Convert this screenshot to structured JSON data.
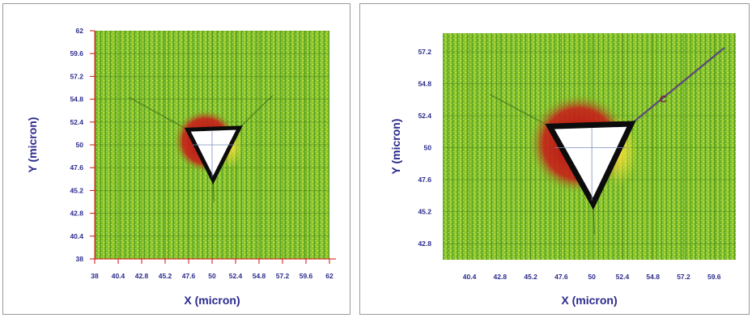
{
  "chart_data": [
    {
      "type": "heatmap",
      "xlabel": "X (micron)",
      "ylabel": "Y (micron)",
      "x_ticks": [
        "38",
        "40.4",
        "42.8",
        "45.2",
        "47.6",
        "50",
        "52.4",
        "54.8",
        "57.2",
        "59.6",
        "62"
      ],
      "y_ticks": [
        "62",
        "59.6",
        "57.2",
        "54.8",
        "52.4",
        "50",
        "47.6",
        "45.2",
        "42.8",
        "40.4",
        "38"
      ],
      "xlim": [
        38,
        62
      ],
      "ylim": [
        38,
        62
      ],
      "indent": {
        "vertices": [
          [
            47.5,
            51.6
          ],
          [
            52.8,
            51.8
          ],
          [
            50.1,
            46.3
          ]
        ],
        "center": [
          50,
          50
        ]
      },
      "cracks": [
        {
          "from": [
            47.5,
            51.6
          ],
          "to": [
            41.5,
            55.0
          ]
        },
        {
          "from": [
            52.8,
            51.8
          ],
          "to": [
            56.2,
            55.2
          ]
        },
        {
          "from": [
            50.1,
            46.3
          ],
          "to": [
            50.2,
            44.0
          ]
        }
      ],
      "annotations": []
    },
    {
      "type": "heatmap",
      "xlabel": "X (micron)",
      "ylabel": "Y (micron)",
      "x_ticks": [
        "40.4",
        "42.8",
        "45.2",
        "47.6",
        "50",
        "52.4",
        "54.8",
        "57.2",
        "59.6"
      ],
      "y_ticks": [
        "57.2",
        "54.8",
        "52.4",
        "50",
        "47.6",
        "45.2",
        "42.8"
      ],
      "xlim": [
        38.3,
        61.3
      ],
      "ylim": [
        41.6,
        58.6
      ],
      "indent": {
        "vertices": [
          [
            46.7,
            51.6
          ],
          [
            53.1,
            51.8
          ],
          [
            50.1,
            45.8
          ]
        ],
        "center": [
          50,
          50
        ]
      },
      "cracks": [
        {
          "from": [
            53.1,
            51.8
          ],
          "to": [
            60.4,
            57.5
          ]
        },
        {
          "from": [
            46.7,
            51.6
          ],
          "to": [
            42.0,
            54.0
          ]
        },
        {
          "from": [
            50.1,
            45.8
          ],
          "to": [
            50.2,
            43.5
          ]
        }
      ],
      "annotations": [
        {
          "text": "C",
          "x": 55.6,
          "y": 53.4
        }
      ]
    }
  ]
}
